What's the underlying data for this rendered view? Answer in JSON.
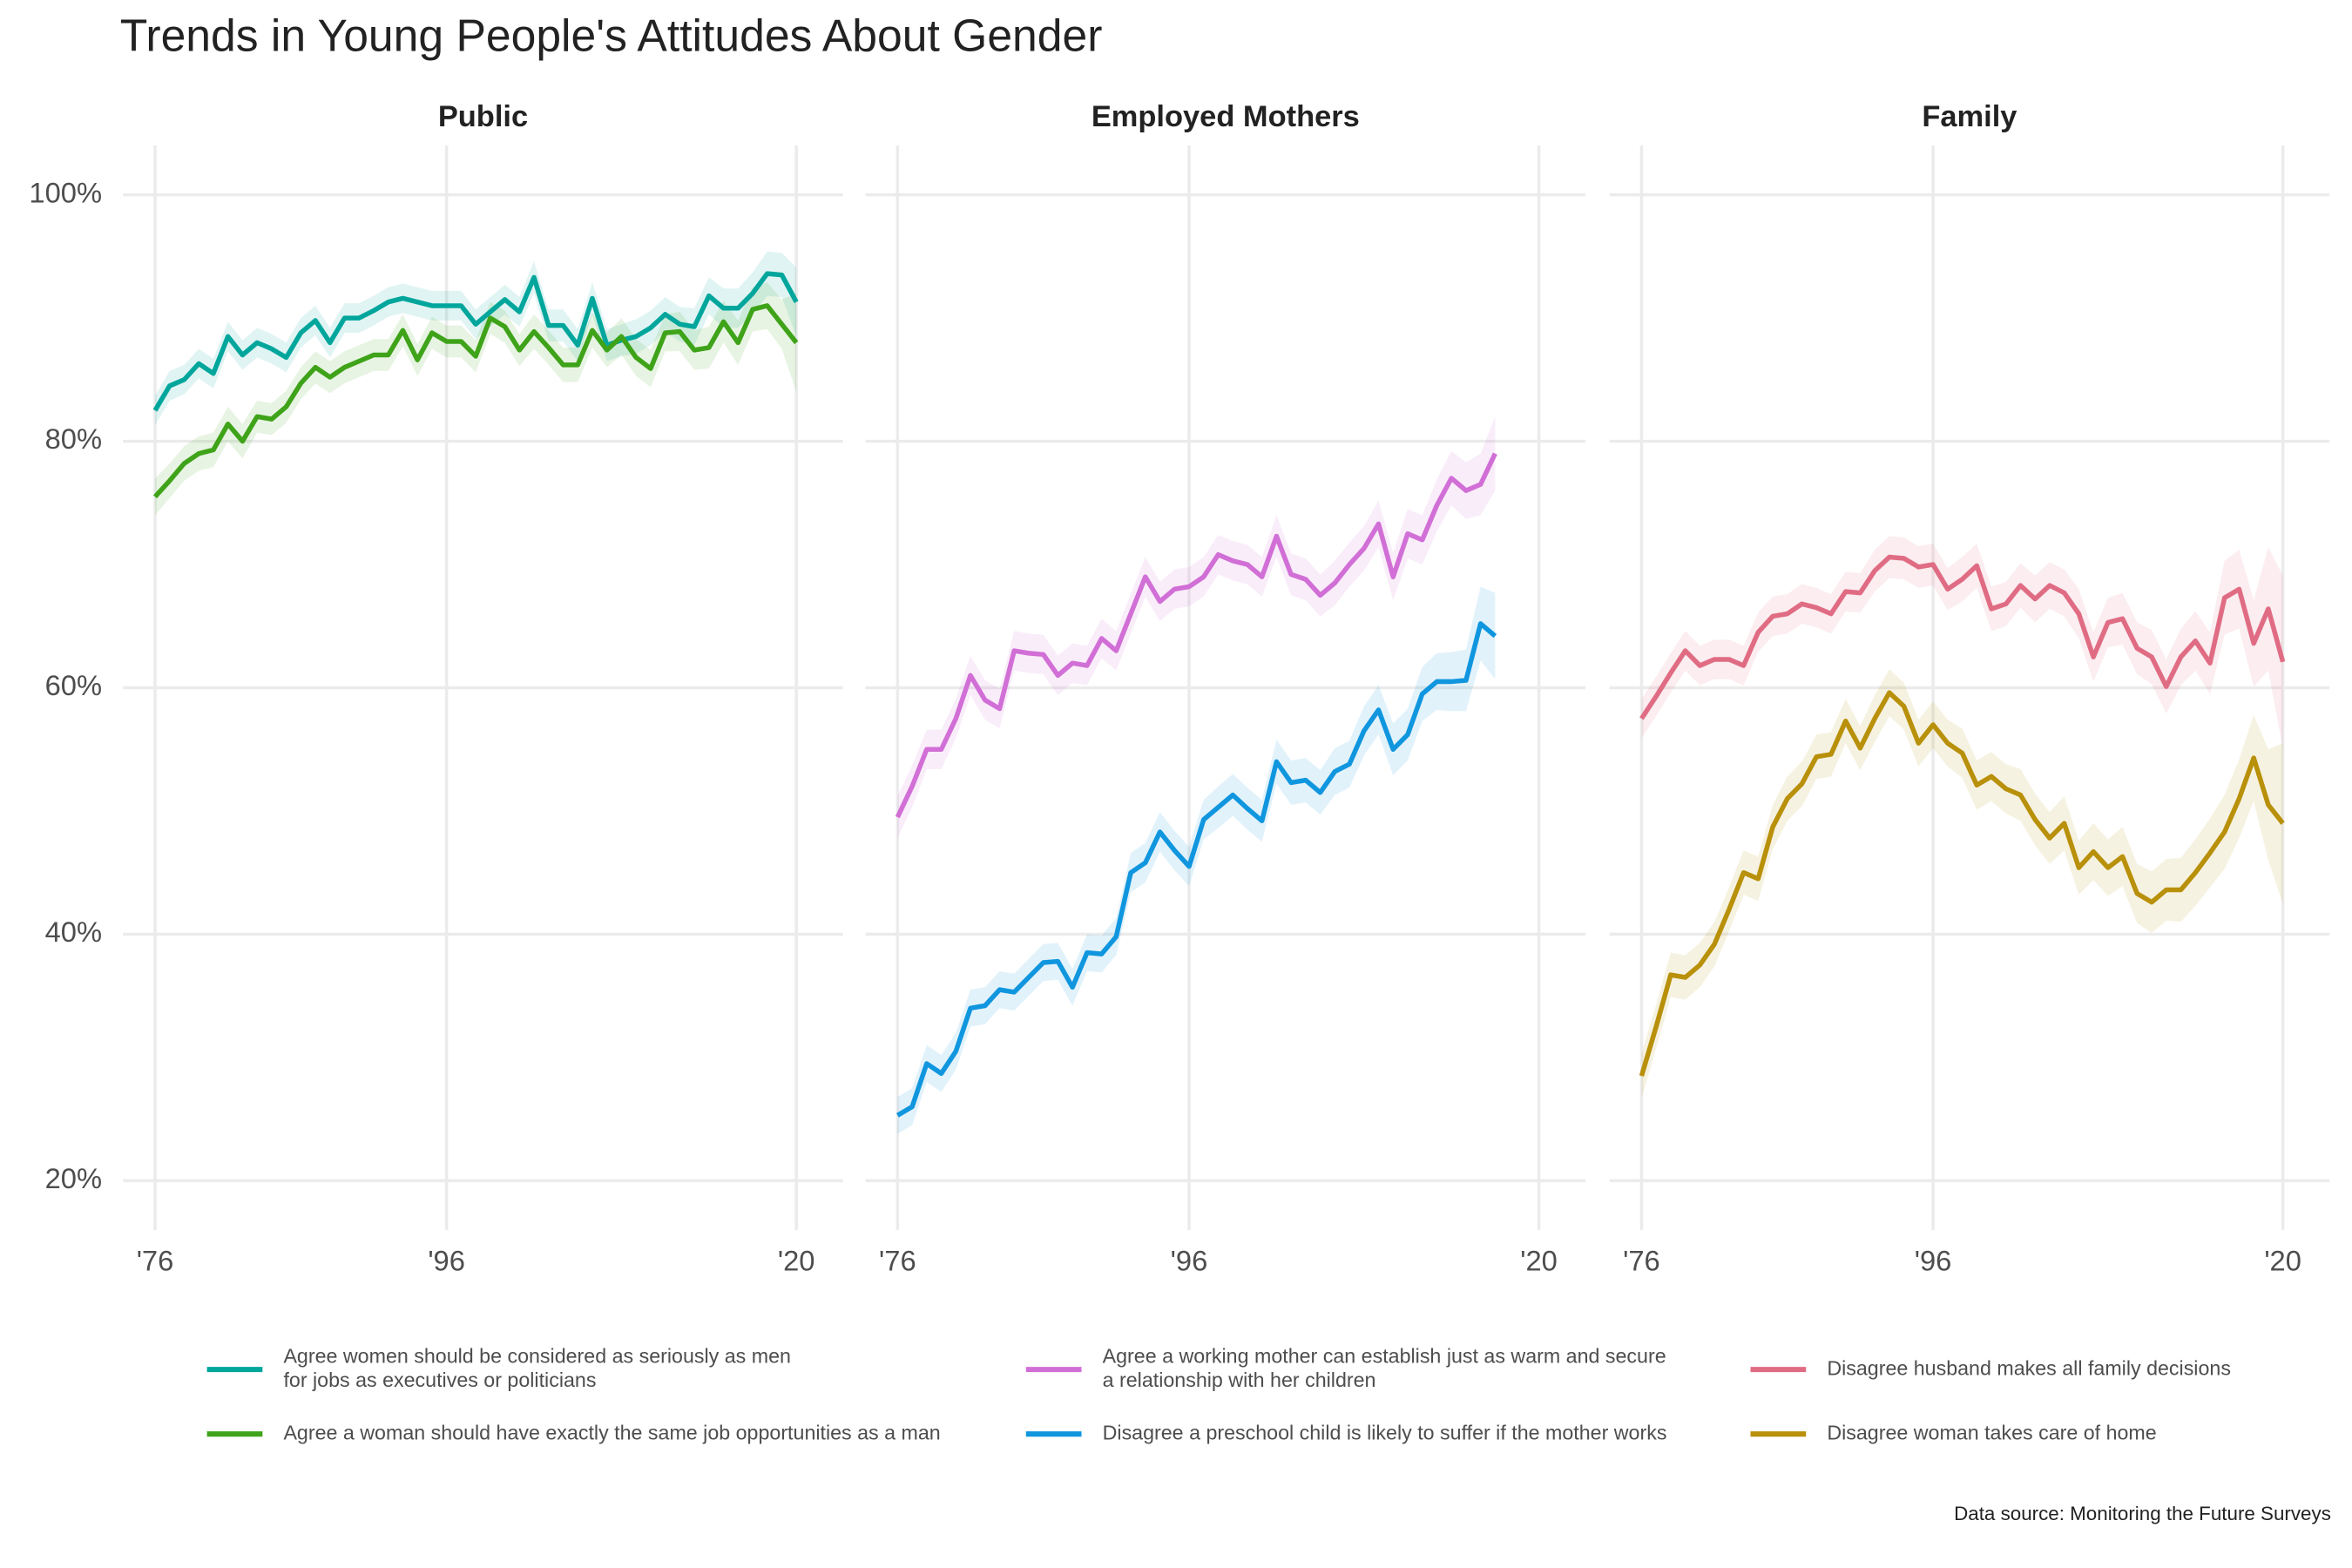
{
  "title": "Trends in Young People's Attitudes About Gender",
  "caption": "Data source: Monitoring the Future Surveys",
  "chart_data": [
    {
      "type": "line",
      "title": "Public",
      "x": [
        1976,
        1977,
        1978,
        1979,
        1980,
        1981,
        1982,
        1983,
        1984,
        1985,
        1986,
        1987,
        1988,
        1989,
        1990,
        1991,
        1992,
        1993,
        1994,
        1995,
        1996,
        1997,
        1998,
        1999,
        2000,
        2001,
        2002,
        2003,
        2004,
        2005,
        2006,
        2007,
        2008,
        2009,
        2010,
        2011,
        2012,
        2013,
        2014,
        2015,
        2016,
        2017,
        2018,
        2019,
        2020
      ],
      "xlim": [
        1973.8,
        2023.2
      ],
      "xticks": [
        {
          "value": 1976,
          "label": "'76"
        },
        {
          "value": 1996,
          "label": "'96"
        },
        {
          "value": 2020,
          "label": "'20"
        }
      ],
      "ylim": [
        16,
        104
      ],
      "yticks": [
        {
          "value": 20,
          "label": "20%"
        },
        {
          "value": 40,
          "label": "40%"
        },
        {
          "value": 60,
          "label": "60%"
        },
        {
          "value": 80,
          "label": "80%"
        },
        {
          "value": 100,
          "label": "100%"
        }
      ],
      "grid": true,
      "series": [
        {
          "name": "Agree women should be considered as seriously as men\nfor jobs as executives or politicians",
          "color": "#00a69c",
          "values": [
            82.5,
            84.5,
            85,
            86.3,
            85.5,
            88.5,
            87,
            88,
            87.5,
            86.8,
            88.8,
            89.8,
            88,
            90,
            90,
            90.6,
            91.3,
            91.6,
            91.3,
            91,
            91,
            91,
            89.5,
            90.5,
            91.5,
            90.5,
            93.3,
            89.4,
            89.4,
            87.8,
            91.6,
            87.8,
            88.2,
            88.5,
            89.2,
            90.3,
            89.5,
            89.3,
            91.8,
            90.8,
            90.8,
            92,
            93.6,
            93.5,
            91.3
          ],
          "error": [
            1.2,
            1.2,
            1.2,
            1.2,
            1.2,
            1.2,
            1.2,
            1.2,
            1.2,
            1.2,
            1.2,
            1.2,
            1.2,
            1.2,
            1.2,
            1.2,
            1.2,
            1.2,
            1.2,
            1.2,
            1.2,
            1.2,
            1.2,
            1.2,
            1.2,
            1.2,
            1.3,
            1.3,
            1.3,
            1.3,
            1.3,
            1.3,
            1.3,
            1.4,
            1.4,
            1.4,
            1.4,
            1.5,
            1.5,
            1.6,
            1.6,
            1.7,
            1.8,
            1.8,
            2.8
          ]
        },
        {
          "name": "Agree a woman should have exactly the same job opportunities as a man",
          "color": "#3fa31a",
          "values": [
            75.5,
            76.8,
            78.2,
            79,
            79.3,
            81.4,
            80,
            82,
            81.8,
            82.8,
            84.7,
            86,
            85.2,
            86,
            86.5,
            87,
            87,
            89,
            86.6,
            88.8,
            88.1,
            88.1,
            86.9,
            90,
            89.3,
            87.4,
            88.9,
            87.6,
            86.2,
            86.2,
            89,
            87.4,
            88.5,
            86.8,
            85.9,
            88.8,
            88.9,
            87.4,
            87.6,
            89.7,
            88,
            90.7,
            91,
            89.5,
            88
          ],
          "error": [
            1.5,
            1.4,
            1.4,
            1.4,
            1.4,
            1.4,
            1.4,
            1.3,
            1.3,
            1.3,
            1.3,
            1.3,
            1.3,
            1.3,
            1.3,
            1.3,
            1.3,
            1.3,
            1.3,
            1.3,
            1.3,
            1.3,
            1.3,
            1.3,
            1.3,
            1.3,
            1.4,
            1.4,
            1.4,
            1.4,
            1.4,
            1.4,
            1.5,
            1.5,
            1.5,
            1.5,
            1.6,
            1.6,
            1.7,
            1.7,
            1.8,
            1.8,
            1.9,
            2,
            4
          ]
        }
      ]
    },
    {
      "type": "line",
      "title": "Employed Mothers",
      "x": [
        1976,
        1977,
        1978,
        1979,
        1980,
        1981,
        1982,
        1983,
        1984,
        1985,
        1986,
        1987,
        1988,
        1989,
        1990,
        1991,
        1992,
        1993,
        1994,
        1995,
        1996,
        1997,
        1998,
        1999,
        2000,
        2001,
        2002,
        2003,
        2004,
        2005,
        2006,
        2007,
        2008,
        2009,
        2010,
        2011,
        2012,
        2013,
        2014,
        2015,
        2016,
        2017
      ],
      "xlim": [
        1973.8,
        2023.2
      ],
      "xticks": [
        {
          "value": 1976,
          "label": "'76"
        },
        {
          "value": 1996,
          "label": "'96"
        },
        {
          "value": 2020,
          "label": "'20"
        }
      ],
      "ylim": [
        16,
        104
      ],
      "yticks": [
        20,
        40,
        60,
        80,
        100
      ],
      "grid": true,
      "series": [
        {
          "name": "Agree a working mother can establish just as warm and secure\na relationship with her children",
          "color": "#d16fd6",
          "values": [
            49.5,
            52,
            55,
            55,
            57.5,
            61,
            59,
            58.3,
            63,
            62.8,
            62.7,
            61,
            62,
            61.8,
            64,
            63,
            66,
            69,
            67,
            68,
            68.2,
            69,
            70.8,
            70.3,
            70,
            69,
            72.3,
            69.2,
            68.8,
            67.5,
            68.5,
            70,
            71.3,
            73.3,
            69,
            72.5,
            72,
            74.8,
            77,
            76,
            76.5,
            79
          ],
          "error": [
            1.7,
            1.7,
            1.6,
            1.6,
            1.6,
            1.6,
            1.6,
            1.6,
            1.6,
            1.6,
            1.6,
            1.6,
            1.6,
            1.6,
            1.6,
            1.6,
            1.6,
            1.6,
            1.6,
            1.6,
            1.6,
            1.6,
            1.6,
            1.6,
            1.6,
            1.6,
            1.7,
            1.7,
            1.7,
            1.7,
            1.8,
            1.8,
            1.8,
            1.9,
            1.9,
            2,
            2,
            2.1,
            2.2,
            2.3,
            2.5,
            3
          ]
        },
        {
          "name": "Disagree a preschool child is likely to suffer if the mother works",
          "color": "#1096de",
          "values": [
            25.3,
            26,
            29.5,
            28.7,
            30.5,
            34,
            34.2,
            35.5,
            35.3,
            36.5,
            37.7,
            37.8,
            35.7,
            38.5,
            38.4,
            39.8,
            45,
            45.8,
            48.3,
            46.8,
            45.5,
            49.3,
            50.3,
            51.3,
            50.2,
            49.2,
            54,
            52.3,
            52.5,
            51.5,
            53.2,
            53.8,
            56.5,
            58.2,
            55,
            56.2,
            59.5,
            60.5,
            60.5,
            60.6,
            65.2,
            64.2
          ],
          "error": [
            1.5,
            1.5,
            1.5,
            1.5,
            1.5,
            1.5,
            1.5,
            1.5,
            1.5,
            1.5,
            1.5,
            1.5,
            1.5,
            1.5,
            1.5,
            1.5,
            1.6,
            1.6,
            1.6,
            1.6,
            1.6,
            1.6,
            1.7,
            1.7,
            1.7,
            1.7,
            1.8,
            1.8,
            1.8,
            1.8,
            1.9,
            1.9,
            2,
            2,
            2.1,
            2.1,
            2.2,
            2.3,
            2.4,
            2.5,
            3,
            3.5
          ]
        }
      ]
    },
    {
      "type": "line",
      "title": "Family",
      "x": [
        1976,
        1977,
        1978,
        1979,
        1980,
        1981,
        1982,
        1983,
        1984,
        1985,
        1986,
        1987,
        1988,
        1989,
        1990,
        1991,
        1992,
        1993,
        1994,
        1995,
        1996,
        1997,
        1998,
        1999,
        2000,
        2001,
        2002,
        2003,
        2004,
        2005,
        2006,
        2007,
        2008,
        2009,
        2010,
        2011,
        2012,
        2013,
        2014,
        2015,
        2016,
        2017,
        2018,
        2019,
        2020
      ],
      "xlim": [
        1973.8,
        2023.2
      ],
      "xticks": [
        {
          "value": 1976,
          "label": "'76"
        },
        {
          "value": 1996,
          "label": "'96"
        },
        {
          "value": 2020,
          "label": "'20"
        }
      ],
      "ylim": [
        16,
        104
      ],
      "yticks": [
        20,
        40,
        60,
        80,
        100
      ],
      "grid": true,
      "series": [
        {
          "name": "Disagree husband makes all family decisions",
          "color": "#e06c84",
          "values": [
            57.5,
            59.3,
            61.2,
            63,
            61.8,
            62.3,
            62.3,
            61.8,
            64.5,
            65.8,
            66,
            66.8,
            66.5,
            66,
            67.8,
            67.7,
            69.5,
            70.6,
            70.5,
            69.8,
            70,
            68,
            68.8,
            69.9,
            66.4,
            66.8,
            68.3,
            67.2,
            68.3,
            67.7,
            66,
            62.5,
            65.3,
            65.6,
            63.2,
            62.5,
            60.1,
            62.5,
            63.8,
            62,
            67.3,
            68,
            63.6,
            66.4,
            62.1
          ],
          "error": [
            1.6,
            1.6,
            1.6,
            1.6,
            1.6,
            1.6,
            1.6,
            1.6,
            1.6,
            1.6,
            1.6,
            1.6,
            1.6,
            1.6,
            1.6,
            1.6,
            1.7,
            1.7,
            1.7,
            1.7,
            1.7,
            1.7,
            1.8,
            1.8,
            1.8,
            1.8,
            1.8,
            1.9,
            1.9,
            1.9,
            2,
            2,
            2,
            2.1,
            2.1,
            2.2,
            2.2,
            2.3,
            2.4,
            2.5,
            3,
            3.2,
            3.5,
            5,
            7
          ]
        },
        {
          "name": "Disagree woman takes care of home",
          "color": "#b8900a",
          "values": [
            28.5,
            32.5,
            36.7,
            36.5,
            37.5,
            39.2,
            42,
            45,
            44.5,
            48.7,
            51,
            52.2,
            54.4,
            54.6,
            57.3,
            55.1,
            57.5,
            59.6,
            58.5,
            55.5,
            57,
            55.5,
            54.7,
            52.1,
            52.8,
            51.8,
            51.3,
            49.3,
            47.8,
            49,
            45.4,
            46.7,
            45.4,
            46.3,
            43.3,
            42.6,
            43.6,
            43.6,
            45,
            46.6,
            48.3,
            51,
            54.3,
            50.5,
            49
          ],
          "error": [
            1.8,
            1.8,
            1.8,
            1.8,
            1.8,
            1.8,
            1.8,
            1.8,
            1.8,
            1.8,
            1.8,
            1.8,
            1.8,
            1.8,
            1.8,
            1.8,
            1.9,
            1.9,
            1.9,
            1.9,
            1.9,
            1.9,
            2,
            2,
            2,
            2,
            2.1,
            2.1,
            2.1,
            2.2,
            2.2,
            2.3,
            2.3,
            2.4,
            2.4,
            2.5,
            2.5,
            2.6,
            2.7,
            2.8,
            3,
            3.2,
            3.5,
            4.5,
            6.5
          ]
        }
      ]
    }
  ]
}
